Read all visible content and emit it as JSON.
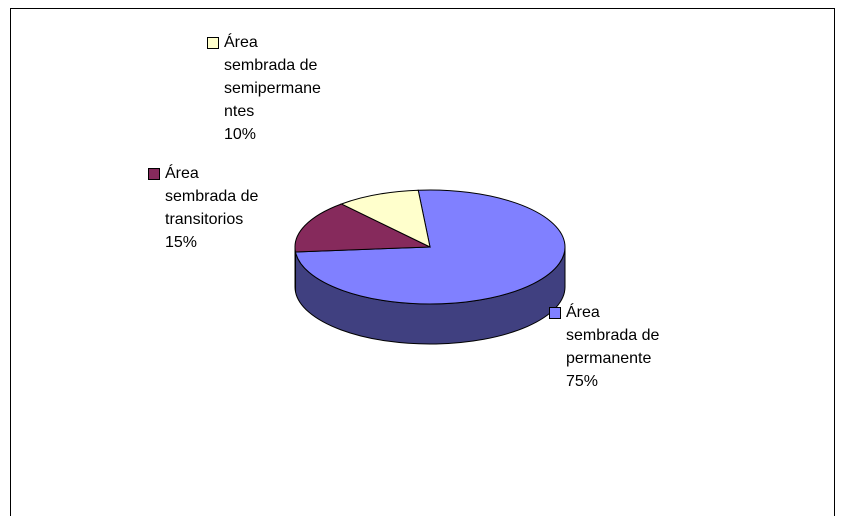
{
  "chart_data": {
    "type": "pie",
    "categories": [
      "Área sembrada de permanente",
      "Área sembrada de transitorios",
      "Área sembrada de semipermanentes"
    ],
    "values": [
      75,
      15,
      10
    ],
    "value_labels": [
      "75%",
      "15%",
      "10%"
    ],
    "colors": [
      "#8080ff",
      "#862a5c",
      "#ffffcc"
    ],
    "legend": "beside-slices"
  }
}
